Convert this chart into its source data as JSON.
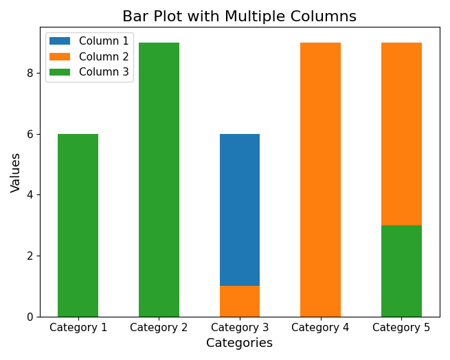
{
  "categories": [
    "Category 1",
    "Category 2",
    "Category 3",
    "Category 4",
    "Category 5"
  ],
  "col1_values": [
    0,
    0,
    5,
    0,
    0
  ],
  "col2_values": [
    0,
    0,
    1,
    9,
    6
  ],
  "col3_values": [
    6,
    9,
    0,
    0,
    3
  ],
  "col1_bottom": [
    0,
    0,
    1,
    0,
    0
  ],
  "col2_bottom": [
    0,
    0,
    0,
    0,
    3
  ],
  "col3_bottom": [
    0,
    0,
    0,
    0,
    0
  ],
  "color1": "#1f77b4",
  "color2": "#ff7f0e",
  "color3": "#2ca02c",
  "label1": "Column 1",
  "label2": "Column 2",
  "label3": "Column 3",
  "title": "Bar Plot with Multiple Columns",
  "xlabel": "Categories",
  "ylabel": "Values",
  "ylim": [
    0,
    9.5
  ],
  "yticks": [
    0,
    2,
    4,
    6,
    8
  ],
  "figsize": [
    6.55,
    5.24
  ],
  "dpi": 100,
  "bar_width": 0.5
}
